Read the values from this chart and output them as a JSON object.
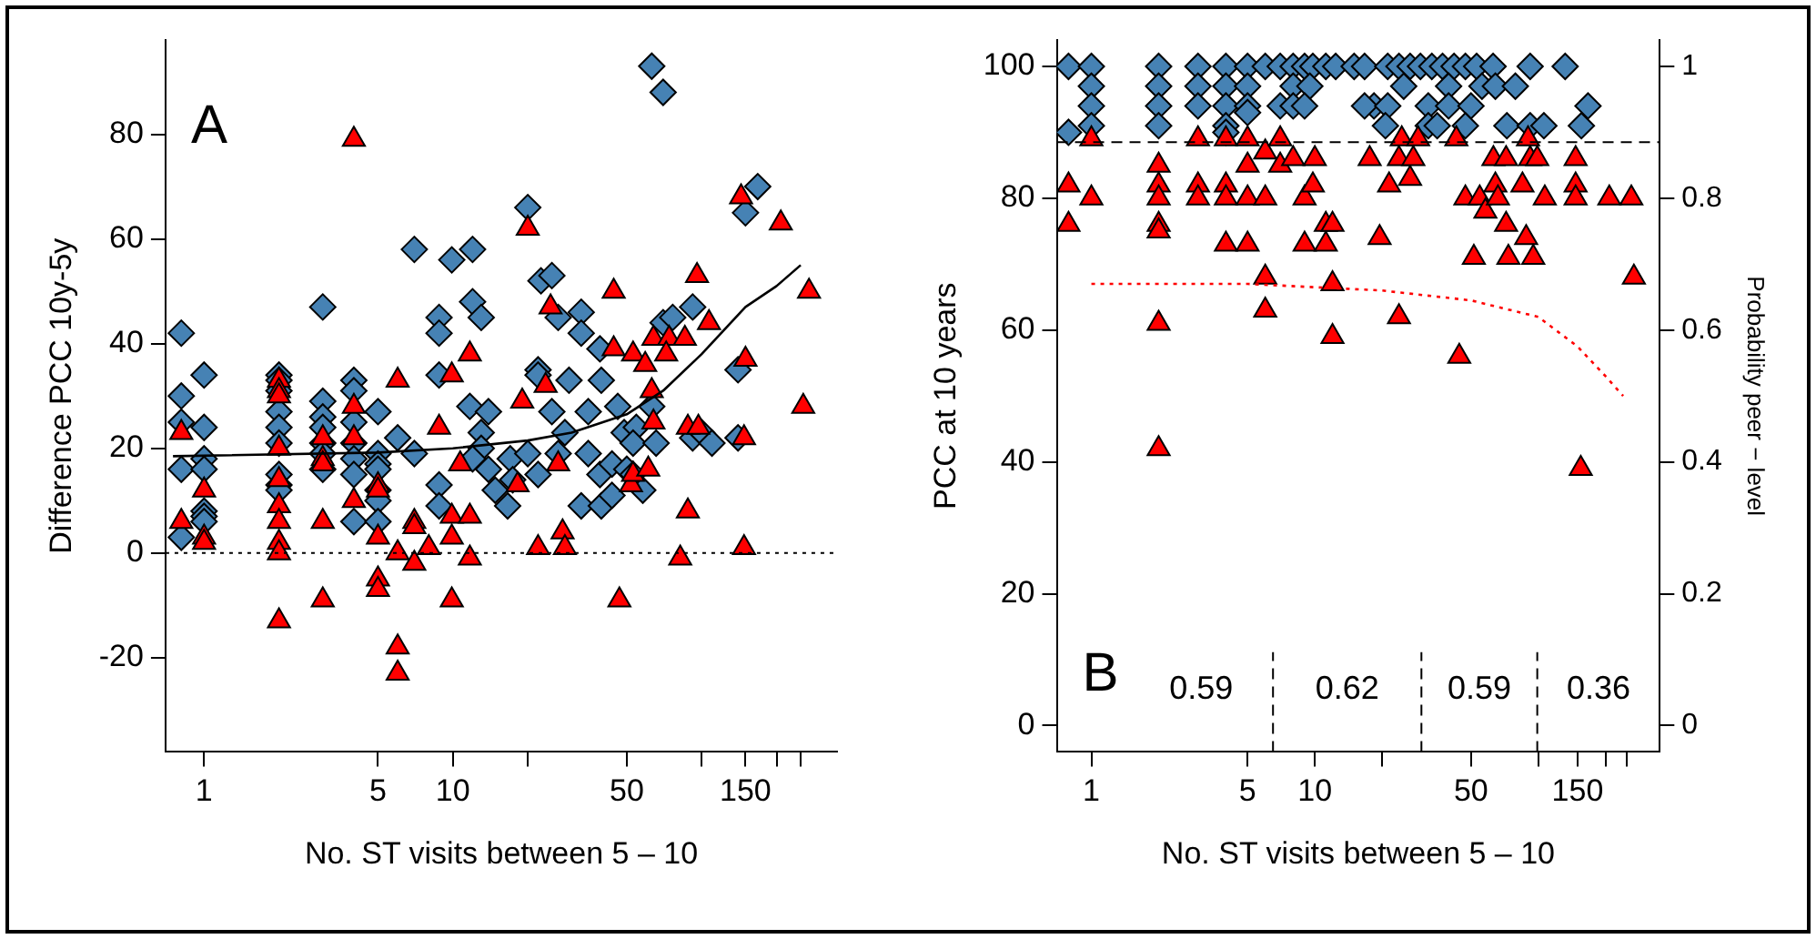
{
  "chart_data": [
    {
      "type": "scatter",
      "xlabel": "No. ST visits between 5 – 10",
      "ylabel": "Difference PCC 10y-5y",
      "log": "x",
      "xlim": [
        0.72,
        350
      ],
      "xticks": [
        1,
        5,
        10,
        {
          "value": 20,
          "label": null
        },
        50,
        {
          "value": 100,
          "label": null
        },
        150,
        {
          "value": 200,
          "label": null
        },
        {
          "value": 250,
          "label": null
        }
      ],
      "ylim": [
        -38,
        98
      ],
      "yticks": [
        -20,
        0,
        20,
        40,
        60,
        80
      ],
      "annotations": [
        "A"
      ],
      "ref_lines": [
        {
          "axis": "y",
          "value": 0,
          "color": "#000000",
          "line_style": "dotted"
        }
      ],
      "series": [
        {
          "type": "scatter",
          "marker": "diamond",
          "color": "#4682b4",
          "x": [
            0.81,
            0.81,
            0.81,
            0.81,
            0.81,
            1,
            1,
            1,
            1,
            1,
            1,
            1,
            2,
            2,
            2,
            2,
            2,
            2,
            2,
            2,
            2,
            3,
            3,
            3,
            3,
            3,
            3,
            3,
            4,
            4,
            4,
            4,
            4,
            4,
            4,
            5,
            5,
            5,
            5,
            5,
            5,
            5,
            6,
            7,
            7,
            8.8,
            8.8,
            8.8,
            8.8,
            8.8,
            9.9,
            12,
            12,
            13,
            11.7,
            13.9,
            13,
            13,
            12,
            13.9,
            14.8,
            16.6,
            17,
            17.4,
            20,
            20,
            22,
            22,
            22,
            22.6,
            25,
            25,
            26.5,
            29.3,
            28.2,
            26.5,
            32.8,
            32.8,
            35,
            32.8,
            39,
            35,
            39.5,
            39,
            39.5,
            43.6,
            46,
            43.6,
            48.8,
            50,
            54.6,
            53,
            53,
            58,
            63,
            65.6,
            63,
            70,
            70,
            76.5,
            92,
            92,
            100,
            110,
            140,
            140,
            150,
            168
          ],
          "values": [
            42,
            30,
            25,
            16,
            3,
            34,
            24,
            18,
            16,
            8,
            7,
            6,
            34,
            33,
            31,
            27,
            24,
            21,
            15,
            13,
            12,
            47,
            29,
            26,
            24,
            21,
            19,
            16,
            33,
            31,
            25,
            21,
            18,
            15,
            6,
            27,
            19,
            17,
            16,
            12,
            10,
            6,
            22,
            58,
            19,
            45,
            42,
            34,
            13,
            9,
            56,
            58,
            48,
            45,
            28,
            27,
            23,
            20,
            18,
            16,
            12,
            9,
            18,
            14,
            66,
            19,
            15,
            35,
            34,
            52,
            53,
            27,
            45,
            33,
            23,
            19,
            46,
            42,
            19,
            9,
            39,
            27,
            33,
            15,
            9,
            11,
            28,
            17,
            23,
            16,
            24,
            21,
            15,
            12,
            28,
            21,
            93,
            88,
            44,
            45,
            47,
            22,
            23,
            21,
            35,
            22,
            65,
            70
          ]
        },
        {
          "type": "scatter",
          "marker": "triangle",
          "color": "#ff0000",
          "x": [
            0.81,
            0.81,
            1,
            1,
            1,
            2,
            2,
            2,
            2,
            2,
            2,
            2,
            2,
            2,
            2,
            3,
            3,
            3,
            3,
            3,
            4,
            4,
            4,
            4,
            5,
            5,
            5,
            5,
            5,
            6,
            6,
            6,
            6,
            7,
            7,
            7,
            8,
            8.8,
            9.9,
            9.9,
            9.9,
            9.9,
            10.7,
            11.7,
            11.7,
            11.7,
            18.2,
            19,
            20,
            23.6,
            24.7,
            22,
            27.6,
            28.2,
            26.5,
            44.3,
            44.3,
            53,
            59.3,
            64,
            63,
            64,
            52,
            53,
            61,
            46.7,
            74,
            72,
            85.6,
            95.8,
            107,
            88,
            82,
            88,
            97,
            148,
            148,
            144,
            150,
            208,
            270,
            256
          ],
          "values": [
            23,
            6,
            12,
            3,
            2,
            33,
            31,
            30,
            20,
            14,
            9,
            6,
            2,
            0,
            -13,
            22,
            18,
            17,
            6,
            -9,
            79,
            28,
            22,
            10,
            13,
            12,
            3,
            -5,
            -7,
            33,
            0,
            -18,
            -23,
            6,
            5,
            -2,
            1,
            24,
            34,
            7,
            3,
            -9,
            17,
            38,
            7,
            -1,
            13,
            29,
            62,
            32,
            47,
            1,
            4,
            1,
            17,
            50,
            39,
            38,
            36,
            41,
            31,
            25,
            13,
            15,
            16,
            -9,
            41,
            38,
            41,
            53,
            44,
            8,
            -1,
            24,
            24,
            1,
            22,
            68,
            37,
            63,
            50,
            28
          ]
        },
        {
          "type": "line",
          "marker": "none",
          "line_style": "solid",
          "color": "#000000",
          "x": [
            0.75,
            5,
            10,
            20,
            30,
            50,
            70,
            100,
            150,
            200,
            250
          ],
          "values": [
            18.5,
            19.2,
            20,
            21.5,
            23,
            26.5,
            31,
            38,
            47,
            51,
            55
          ]
        }
      ]
    },
    {
      "type": "scatter",
      "xlabel": "No. ST visits between 5 – 10",
      "ylabel": "PCC at 10 years",
      "y2label": "Probability peer − level",
      "log": "x",
      "xlim": [
        0.72,
        350
      ],
      "xticks": [
        1,
        5,
        10,
        {
          "value": 20,
          "label": null
        },
        50,
        {
          "value": 100,
          "label": null
        },
        150,
        {
          "value": 200,
          "label": null
        },
        {
          "value": 250,
          "label": null
        }
      ],
      "ylim": [
        -4,
        104
      ],
      "yticks": [
        0,
        20,
        40,
        60,
        80,
        100
      ],
      "y2lim": [
        -0.04,
        1.04
      ],
      "y2ticks": [
        0,
        0.2,
        0.4,
        0.6,
        0.8,
        1
      ],
      "annotations": [
        "B",
        "0.59",
        "0.62",
        "0.59",
        "0.36"
      ],
      "ref_lines": [
        {
          "axis": "y",
          "value": 88.5,
          "color": "#000000",
          "line_style": "dashed"
        },
        {
          "axis": "x",
          "value": 6.5,
          "color": "#000000",
          "line_style": "dashed"
        },
        {
          "axis": "x",
          "value": 30,
          "color": "#000000",
          "line_style": "dashed"
        },
        {
          "axis": "x",
          "value": 99,
          "color": "#000000",
          "line_style": "dashed"
        }
      ],
      "series": [
        {
          "type": "scatter",
          "marker": "diamond",
          "color": "#4682b4",
          "x": [
            0.79,
            0.79,
            1,
            1,
            1,
            1,
            2,
            2,
            2,
            2,
            3,
            3,
            3,
            4,
            4,
            4,
            4,
            4,
            5,
            5,
            5,
            5,
            6,
            7,
            7,
            8,
            8,
            8,
            9,
            9.8,
            11.2,
            12.4,
            15,
            16.7,
            21.2,
            23.8,
            26.7,
            29.7,
            33.4,
            37.3,
            42,
            47.2,
            53,
            62.8,
            92,
            132,
            9.5,
            25,
            39.7,
            56,
            64.3,
            79,
            9,
            18.4,
            16.7,
            21.2,
            32.2,
            39.7,
            50,
            167,
            20.7,
            32.2,
            35.3,
            47.2,
            72.4,
            92,
            106,
            156
          ],
          "values": [
            100,
            90,
            100,
            97,
            94,
            91,
            100,
            97,
            94,
            91,
            100,
            97,
            94,
            100,
            97,
            94,
            91,
            90,
            100,
            97,
            94,
            93,
            100,
            100,
            94,
            100,
            97,
            94,
            100,
            100,
            100,
            100,
            100,
            100,
            100,
            100,
            100,
            100,
            100,
            100,
            100,
            100,
            100,
            100,
            100,
            100,
            97,
            97,
            97,
            97,
            97,
            97,
            94,
            94,
            94,
            94,
            94,
            94,
            94,
            94,
            91,
            91,
            91,
            91,
            91,
            91,
            91,
            91
          ]
        },
        {
          "type": "scatter",
          "marker": "triangle",
          "color": "#ff0000",
          "x": [
            0.79,
            0.79,
            1,
            1,
            2,
            2,
            2,
            2,
            2,
            2,
            2,
            3,
            3,
            3,
            4,
            4,
            4,
            4,
            5,
            5,
            5,
            5,
            6,
            6,
            6,
            6,
            7,
            7,
            8,
            9,
            9,
            10,
            9.8,
            11.2,
            11.2,
            12,
            12,
            12,
            17.6,
            19.5,
            21.5,
            23.8,
            24.5,
            26.7,
            29,
            27.6,
            23.8,
            43,
            44.3,
            51.5,
            47.2,
            54.7,
            58,
            63,
            64.3,
            66,
            71.8,
            71.8,
            73.5,
            85,
            88.3,
            95,
            90,
            92,
            99,
            107,
            147,
            147,
            147,
            155,
            208,
            261,
            268
          ],
          "values": [
            82,
            76,
            89,
            80,
            85,
            82,
            80,
            76,
            75,
            61,
            42,
            89,
            82,
            80,
            89,
            82,
            80,
            73,
            89,
            85,
            80,
            73,
            87,
            80,
            68,
            63,
            89,
            85,
            86,
            80,
            73,
            86,
            82,
            76,
            73,
            76,
            67,
            59,
            86,
            74,
            82,
            86,
            89,
            83,
            89,
            86,
            62,
            89,
            56,
            71,
            80,
            80,
            78,
            86,
            82,
            80,
            86,
            76,
            71,
            82,
            74,
            71,
            89,
            86,
            86,
            80,
            86,
            82,
            80,
            39,
            80,
            80,
            68
          ]
        },
        {
          "type": "line",
          "axis": "y2",
          "marker": "none",
          "line_style": "dotted",
          "color": "#ff0000",
          "x": [
            1,
            5,
            10,
            20,
            50,
            100,
            150,
            200,
            240
          ],
          "values": [
            0.67,
            0.67,
            0.665,
            0.66,
            0.645,
            0.62,
            0.575,
            0.53,
            0.5
          ]
        }
      ]
    }
  ]
}
